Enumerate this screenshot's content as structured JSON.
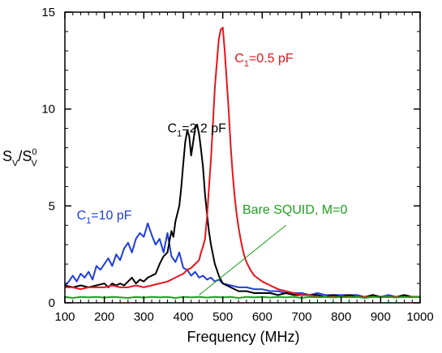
{
  "chart_data": {
    "type": "line",
    "xlabel": "Frequency (MHz)",
    "ylabel": {
      "main": "S",
      "sub1": "V",
      "slash": "/S",
      "sup": "0",
      "sub2": "V"
    },
    "xlim": [
      100,
      1000
    ],
    "ylim": [
      0,
      15
    ],
    "xticks": [
      100,
      200,
      300,
      400,
      500,
      600,
      700,
      800,
      900,
      1000
    ],
    "yticks": [
      0,
      5,
      10,
      15
    ],
    "grid": false,
    "series": [
      {
        "name": "C1=10 pF",
        "label": {
          "pre": "C",
          "sub": "1",
          "post": "=10 pF"
        },
        "color": "#1f3de0",
        "x": [
          100,
          110,
          120,
          130,
          140,
          150,
          160,
          170,
          180,
          190,
          200,
          210,
          220,
          230,
          240,
          250,
          260,
          270,
          280,
          290,
          300,
          310,
          320,
          330,
          340,
          350,
          360,
          370,
          380,
          390,
          400,
          410,
          420,
          430,
          440,
          450,
          460,
          470,
          480,
          490,
          500,
          520,
          540,
          560,
          580,
          600,
          620,
          640,
          660,
          680,
          700,
          720,
          740,
          760,
          780,
          800,
          820,
          840,
          860,
          880,
          900,
          920,
          940,
          960,
          980,
          1000
        ],
        "y": [
          0.9,
          1.1,
          1.4,
          1.1,
          1.5,
          1.3,
          1.6,
          1.2,
          1.9,
          1.7,
          2.0,
          2.3,
          1.9,
          2.5,
          2.2,
          2.8,
          3.1,
          2.6,
          3.3,
          3.6,
          3.4,
          4.1,
          3.5,
          3.0,
          3.3,
          2.6,
          3.6,
          2.4,
          2.1,
          2.6,
          1.8,
          1.7,
          1.4,
          1.6,
          1.3,
          1.4,
          1.2,
          1.3,
          1.1,
          1.2,
          1.0,
          0.9,
          0.8,
          0.8,
          0.7,
          0.7,
          0.6,
          0.6,
          0.5,
          0.5,
          0.5,
          0.4,
          0.5,
          0.4,
          0.4,
          0.4,
          0.4,
          0.4,
          0.3,
          0.4,
          0.3,
          0.4,
          0.3,
          0.4,
          0.3,
          0.3
        ]
      },
      {
        "name": "C1=2.2 pF",
        "label": {
          "pre": "C",
          "sub": "1",
          "post": "=2.2 pF"
        },
        "color": "#000000",
        "x": [
          100,
          120,
          140,
          160,
          180,
          200,
          210,
          220,
          230,
          240,
          250,
          260,
          270,
          280,
          290,
          300,
          310,
          320,
          330,
          340,
          350,
          360,
          365,
          370,
          375,
          380,
          385,
          390,
          395,
          400,
          405,
          410,
          415,
          420,
          425,
          430,
          435,
          440,
          445,
          450,
          455,
          460,
          465,
          470,
          475,
          480,
          485,
          490,
          495,
          500,
          510,
          520,
          540,
          560,
          580,
          600,
          620,
          640,
          660,
          680,
          700,
          720,
          740,
          760,
          780,
          800,
          820,
          840,
          860,
          880,
          900,
          920,
          940,
          960,
          980,
          1000
        ],
        "y": [
          0.9,
          0.8,
          0.9,
          0.8,
          0.9,
          1.0,
          0.8,
          1.0,
          0.9,
          1.0,
          0.9,
          1.1,
          1.3,
          1.0,
          1.2,
          1.1,
          1.3,
          1.4,
          1.5,
          2.0,
          2.4,
          2.6,
          3.2,
          3.7,
          3.4,
          4.2,
          4.6,
          5.0,
          6.0,
          7.2,
          8.3,
          8.9,
          8.6,
          7.6,
          8.3,
          9.0,
          9.2,
          8.7,
          7.9,
          7.0,
          5.6,
          4.6,
          3.7,
          3.0,
          2.5,
          2.0,
          1.7,
          1.4,
          1.2,
          1.0,
          0.9,
          0.8,
          0.6,
          0.6,
          0.5,
          0.5,
          0.5,
          0.4,
          0.5,
          0.4,
          0.4,
          0.4,
          0.4,
          0.3,
          0.4,
          0.3,
          0.4,
          0.3,
          0.3,
          0.4,
          0.3,
          0.3,
          0.3,
          0.4,
          0.3,
          0.3
        ]
      },
      {
        "name": "C1=0.5 pF",
        "label": {
          "pre": "C",
          "sub": "1",
          "post": "=0.5 pF"
        },
        "color": "#e8141c",
        "x": [
          100,
          120,
          140,
          160,
          180,
          200,
          220,
          240,
          260,
          280,
          300,
          320,
          340,
          360,
          380,
          400,
          410,
          420,
          430,
          440,
          445,
          450,
          455,
          460,
          465,
          470,
          475,
          480,
          485,
          490,
          495,
          500,
          505,
          510,
          515,
          520,
          525,
          530,
          535,
          540,
          545,
          550,
          555,
          560,
          570,
          580,
          600,
          620,
          640,
          660,
          680,
          700,
          720,
          740,
          760,
          780,
          800,
          820,
          840,
          860,
          880,
          900,
          920,
          940,
          960,
          980,
          1000
        ],
        "y": [
          0.8,
          0.8,
          0.7,
          0.8,
          0.8,
          0.8,
          0.9,
          0.8,
          0.8,
          0.9,
          0.8,
          0.9,
          1.0,
          1.1,
          1.3,
          1.5,
          1.7,
          1.8,
          2.0,
          2.2,
          2.6,
          2.9,
          3.3,
          4.4,
          5.9,
          7.4,
          9.2,
          11.1,
          12.4,
          13.6,
          14.1,
          14.2,
          13.0,
          11.5,
          9.9,
          8.1,
          6.7,
          5.5,
          4.6,
          3.9,
          3.3,
          2.8,
          2.4,
          2.1,
          1.7,
          1.4,
          1.1,
          0.9,
          0.7,
          0.6,
          0.5,
          0.4,
          0.4,
          0.3,
          0.3,
          0.3,
          0.3,
          0.3,
          0.3,
          0.3,
          0.3,
          0.3,
          0.3,
          0.3,
          0.3,
          0.3,
          0.3
        ]
      },
      {
        "name": "Bare SQUID, M=0",
        "label": {
          "pre": "Bare SQUID, M=0",
          "sub": "",
          "post": ""
        },
        "color": "#1f9e1f",
        "x": [
          100,
          120,
          140,
          160,
          180,
          200,
          220,
          240,
          260,
          280,
          300,
          320,
          340,
          360,
          380,
          400,
          420,
          440,
          460,
          480,
          500,
          520,
          540,
          560,
          580,
          600,
          620,
          640,
          660,
          680,
          700,
          720,
          740,
          760,
          780,
          800,
          820,
          840,
          860,
          880,
          900,
          920,
          940,
          960,
          980,
          1000
        ],
        "y": [
          0.3,
          0.25,
          0.3,
          0.28,
          0.3,
          0.27,
          0.3,
          0.28,
          0.25,
          0.3,
          0.27,
          0.3,
          0.28,
          0.3,
          0.25,
          0.3,
          0.28,
          0.3,
          0.27,
          0.3,
          0.28,
          0.3,
          0.25,
          0.3,
          0.28,
          0.3,
          0.27,
          0.3,
          0.28,
          0.3,
          0.25,
          0.3,
          0.28,
          0.3,
          0.27,
          0.3,
          0.28,
          0.3,
          0.25,
          0.3,
          0.28,
          0.3,
          0.27,
          0.3,
          0.28,
          0.3
        ]
      }
    ],
    "annotations": [
      {
        "series": 2,
        "label_x": 530,
        "label_y": 12.4,
        "anchor": "start"
      },
      {
        "series": 1,
        "label_x": 360,
        "label_y": 8.8,
        "anchor": "start"
      },
      {
        "series": 0,
        "label_x": 130,
        "label_y": 4.3,
        "anchor": "start"
      },
      {
        "series": 3,
        "label_x": 550,
        "label_y": 4.6,
        "anchor": "start",
        "pointer": {
          "from": [
            660,
            4.0
          ],
          "to": [
            440,
            0.4
          ]
        }
      }
    ]
  }
}
